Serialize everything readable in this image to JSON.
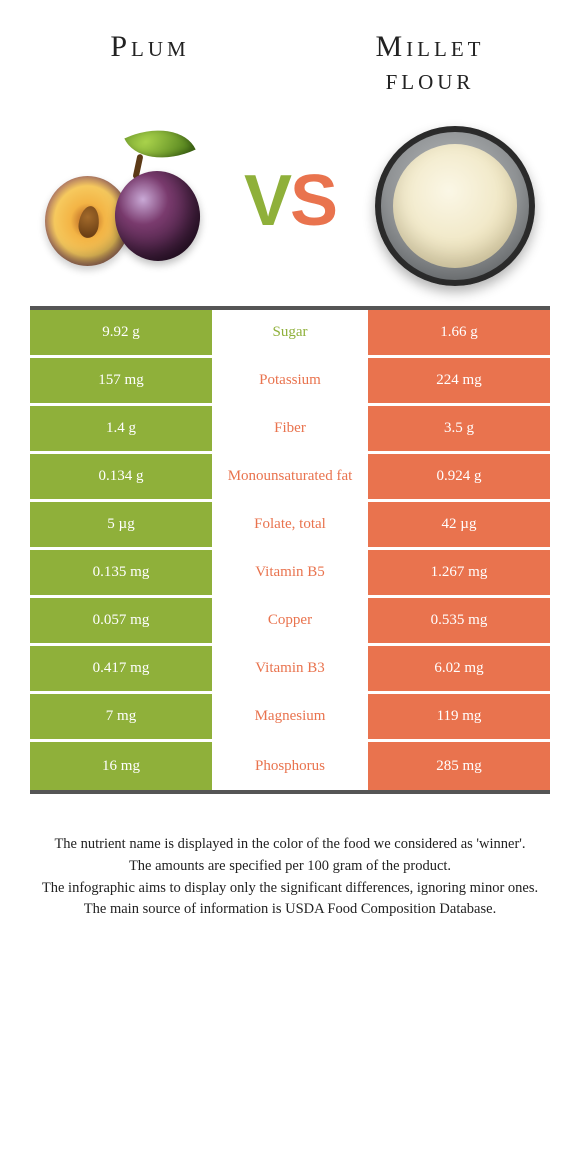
{
  "colors": {
    "left": "#8fb03a",
    "right": "#e9734e",
    "border": "#555555",
    "left_text": "#ffffff",
    "right_text": "#ffffff"
  },
  "header": {
    "left_title": "Plum",
    "right_title": "Millet flour",
    "vs": {
      "v": "V",
      "s": "S"
    }
  },
  "rows": [
    {
      "label": "Sugar",
      "left": "9.92 g",
      "right": "1.66 g",
      "winner": "left"
    },
    {
      "label": "Potassium",
      "left": "157 mg",
      "right": "224 mg",
      "winner": "right"
    },
    {
      "label": "Fiber",
      "left": "1.4 g",
      "right": "3.5 g",
      "winner": "right"
    },
    {
      "label": "Monounsaturated fat",
      "left": "0.134 g",
      "right": "0.924 g",
      "winner": "right"
    },
    {
      "label": "Folate, total",
      "left": "5 µg",
      "right": "42 µg",
      "winner": "right"
    },
    {
      "label": "Vitamin B5",
      "left": "0.135 mg",
      "right": "1.267 mg",
      "winner": "right"
    },
    {
      "label": "Copper",
      "left": "0.057 mg",
      "right": "0.535 mg",
      "winner": "right"
    },
    {
      "label": "Vitamin B3",
      "left": "0.417 mg",
      "right": "6.02 mg",
      "winner": "right"
    },
    {
      "label": "Magnesium",
      "left": "7 mg",
      "right": "119 mg",
      "winner": "right"
    },
    {
      "label": "Phosphorus",
      "left": "16 mg",
      "right": "285 mg",
      "winner": "right"
    }
  ],
  "footer": {
    "line1": "The nutrient name is displayed in the color of the food we considered as 'winner'.",
    "line2": "The amounts are specified per 100 gram of the product.",
    "line3": "The infographic aims to display only the significant differences, ignoring minor ones.",
    "line4": "The main source of information is USDA Food Composition Database."
  }
}
